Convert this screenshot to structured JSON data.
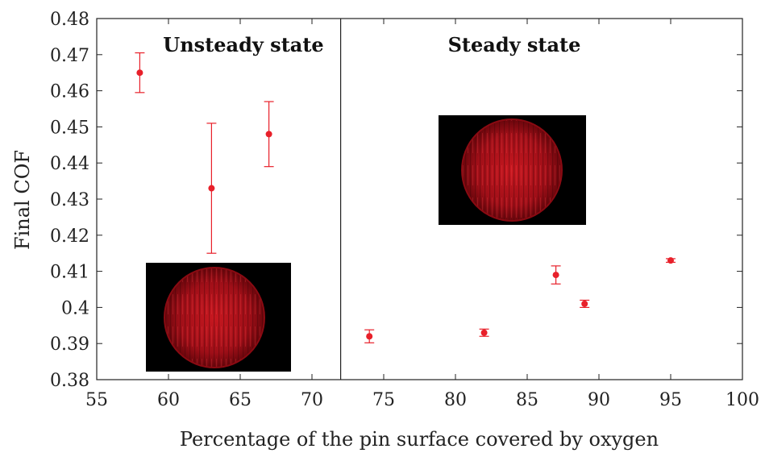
{
  "chart_data": {
    "type": "scatter",
    "title": "",
    "xlabel": "Percentage of the pin surface covered by oxygen",
    "ylabel": "Final COF",
    "xlim": [
      55,
      100
    ],
    "ylim": [
      0.38,
      0.48
    ],
    "xticks": [
      "55",
      "60",
      "65",
      "70",
      "75",
      "80",
      "85",
      "90",
      "95",
      "100"
    ],
    "yticks": [
      "0.38",
      "0.39",
      "0.4",
      "0.41",
      "0.42",
      "0.43",
      "0.44",
      "0.45",
      "0.46",
      "0.47",
      "0.48"
    ],
    "grid": false,
    "divider_x": 72,
    "regions": [
      {
        "label": "Unsteady state"
      },
      {
        "label": "Steady state"
      }
    ],
    "marker_color": "#e8202a",
    "series": [
      {
        "points": [
          {
            "x": 58,
            "y": 0.465,
            "err": 0.0055
          },
          {
            "x": 63,
            "y": 0.433,
            "err": 0.018
          },
          {
            "x": 67,
            "y": 0.448,
            "err": 0.009
          },
          {
            "x": 74,
            "y": 0.392,
            "err": 0.0018
          },
          {
            "x": 82,
            "y": 0.393,
            "err": 0.001
          },
          {
            "x": 87,
            "y": 0.409,
            "err": 0.0025
          },
          {
            "x": 89,
            "y": 0.401,
            "err": 0.001
          },
          {
            "x": 95,
            "y": 0.413,
            "err": 0.0005
          }
        ]
      }
    ]
  }
}
